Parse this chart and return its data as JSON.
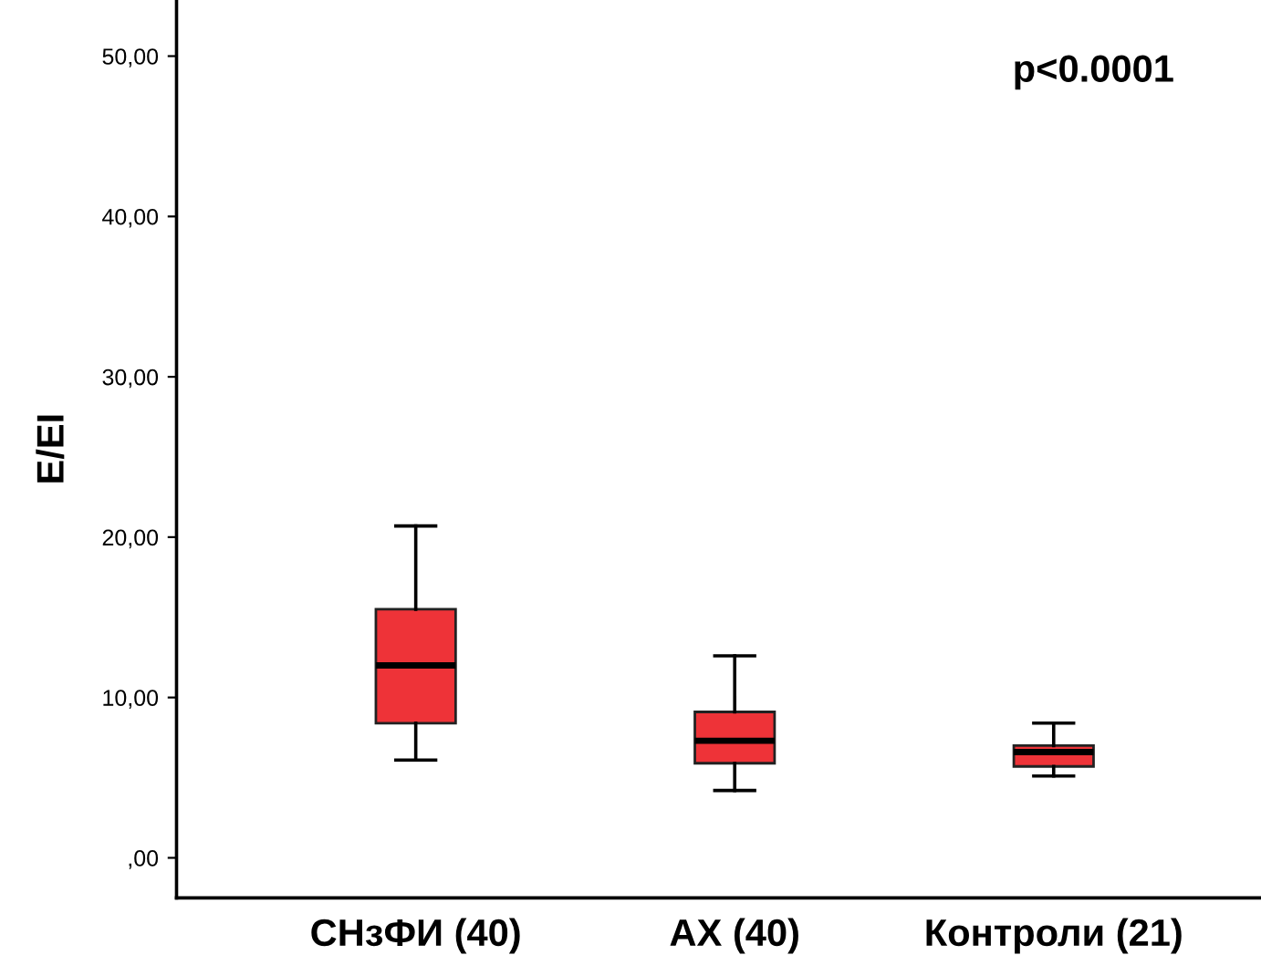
{
  "chart_data": {
    "type": "box",
    "ylabel": "E/EI",
    "categories": [
      "СНзФИ (40)",
      "АХ (40)",
      "Контроли (21)"
    ],
    "color": "#ee3338",
    "boxes": [
      {
        "low": 6.1,
        "q1": 8.4,
        "median": 12.0,
        "q3": 15.5,
        "high": 20.7
      },
      {
        "low": 4.2,
        "q1": 5.9,
        "median": 7.3,
        "q3": 9.1,
        "high": 12.6
      },
      {
        "low": 5.1,
        "q1": 5.7,
        "median": 6.6,
        "q3": 7.0,
        "high": 8.4
      }
    ],
    "ylim": [
      -2.5,
      53.5
    ],
    "yticks": [
      {
        "value": 0,
        "label": ",00"
      },
      {
        "value": 10,
        "label": "10,00"
      },
      {
        "value": 20,
        "label": "20,00"
      },
      {
        "value": 30,
        "label": "30,00"
      },
      {
        "value": 40,
        "label": "40,00"
      },
      {
        "value": 50,
        "label": "50,00"
      }
    ],
    "annotations": [
      "p<0.0001"
    ],
    "grid": false
  }
}
